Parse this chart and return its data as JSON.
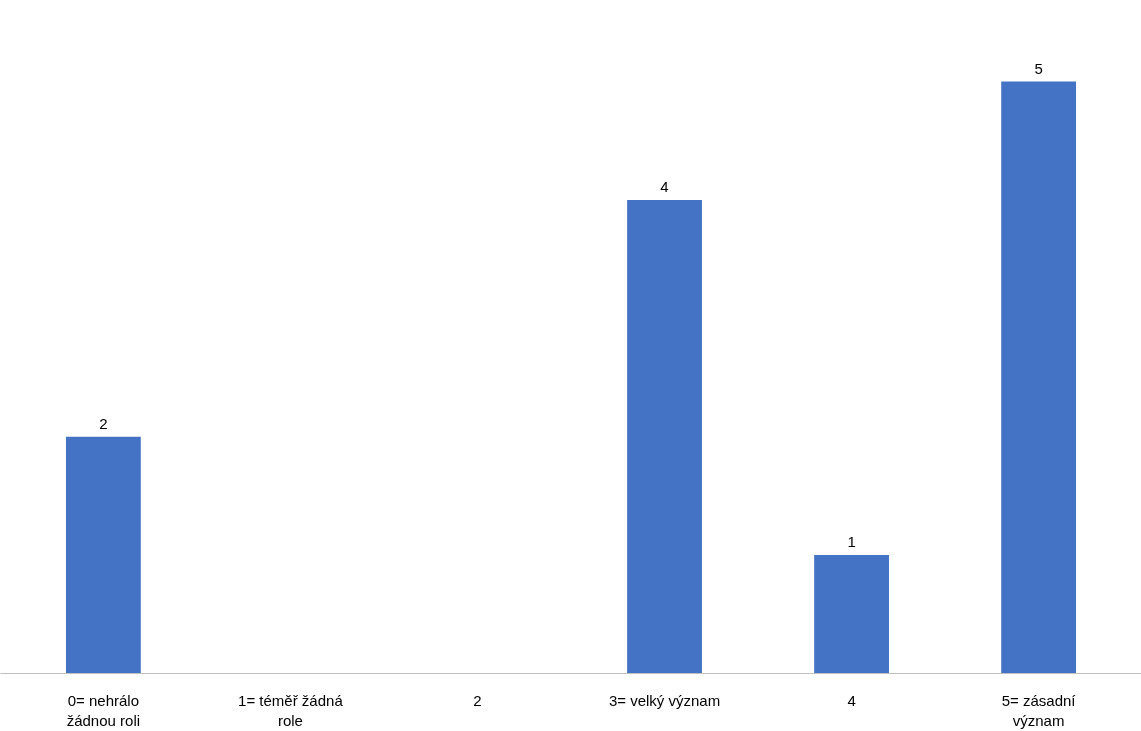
{
  "chart_data": {
    "type": "bar",
    "categories": [
      "0= nehrálo žádnou roli",
      "1= téměř žádná role",
      "2",
      "3= velký význam",
      "4",
      "5= zásadní význam"
    ],
    "values": [
      2,
      0,
      0,
      4,
      1,
      5
    ],
    "value_labels": [
      "2",
      null,
      null,
      "4",
      "1",
      "5"
    ],
    "color": "#4472c4",
    "grid": false,
    "tick_labels": "x"
  }
}
